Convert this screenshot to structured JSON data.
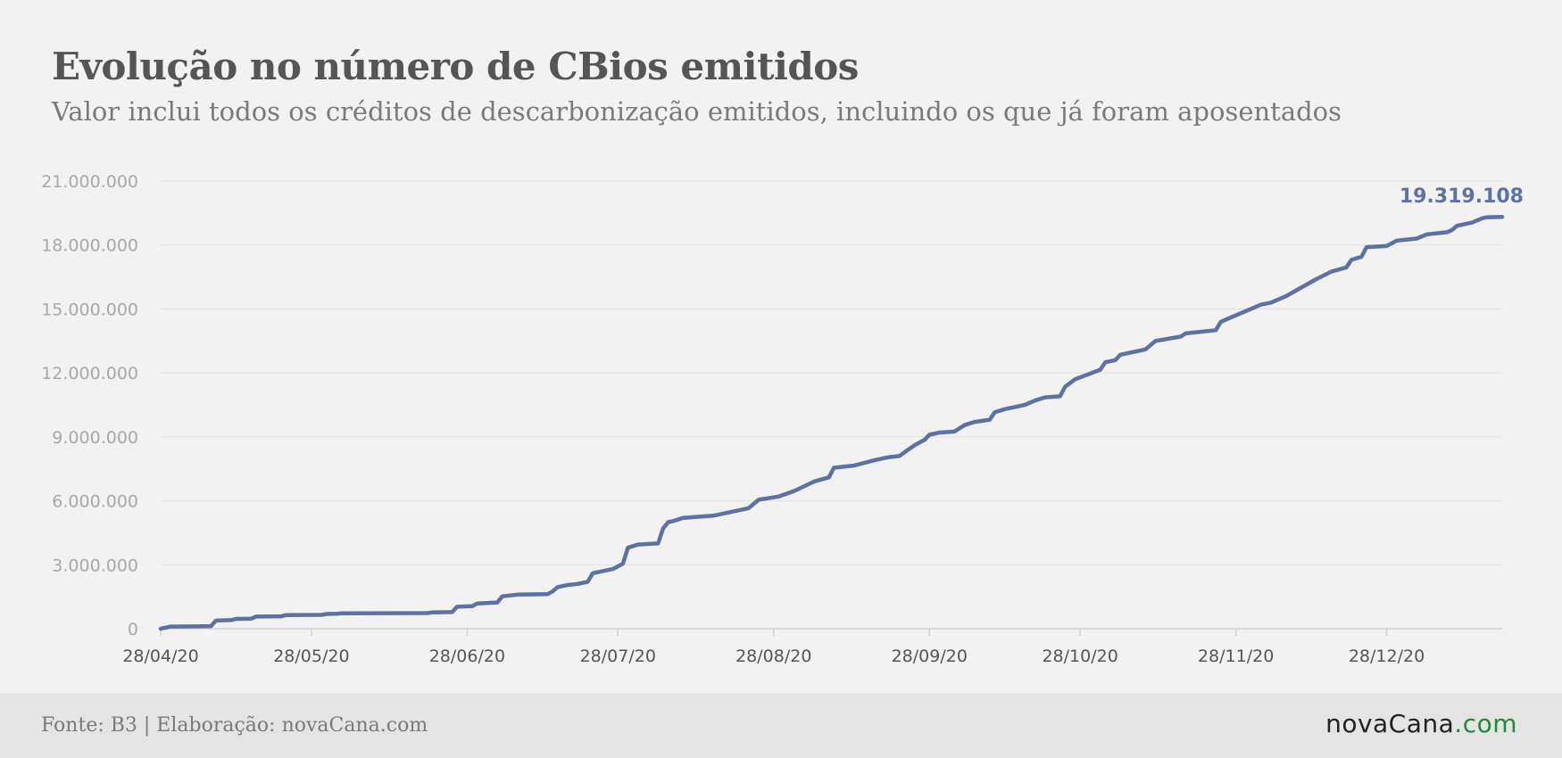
{
  "chart_data": {
    "type": "line",
    "title": "Evolução no número de CBios emitidos",
    "subtitle": "Valor inclui todos os créditos de descarbonização emitidos, incluindo os que já foram aposentados",
    "ylim": [
      0,
      21000000
    ],
    "y_ticks": [
      0,
      3000000,
      6000000,
      9000000,
      12000000,
      15000000,
      18000000,
      21000000
    ],
    "y_tick_labels": [
      "0",
      "3.000.000",
      "6.000.000",
      "9.000.000",
      "12.000.000",
      "15.000.000",
      "18.000.000",
      "21.000.000"
    ],
    "x_tick_dates": [
      "2020-04-28",
      "2020-05-28",
      "2020-06-28",
      "2020-07-28",
      "2020-08-28",
      "2020-09-28",
      "2020-10-28",
      "2020-11-28",
      "2020-12-28"
    ],
    "x_tick_labels": [
      "28/04/20",
      "28/05/20",
      "28/06/20",
      "28/07/20",
      "28/08/20",
      "28/09/20",
      "28/10/20",
      "28/11/20",
      "28/12/20"
    ],
    "xlim": [
      "2020-04-28",
      "2021-01-20"
    ],
    "grid": true,
    "series": [
      {
        "color": "#5e71a3",
        "points": [
          [
            "2020-04-28",
            0
          ],
          [
            "2020-04-30",
            100000
          ],
          [
            "2020-05-05",
            110000
          ],
          [
            "2020-05-08",
            120000
          ],
          [
            "2020-05-09",
            380000
          ],
          [
            "2020-05-12",
            400000
          ],
          [
            "2020-05-13",
            460000
          ],
          [
            "2020-05-16",
            470000
          ],
          [
            "2020-05-17",
            570000
          ],
          [
            "2020-05-22",
            580000
          ],
          [
            "2020-05-23",
            640000
          ],
          [
            "2020-05-30",
            650000
          ],
          [
            "2020-05-31",
            690000
          ],
          [
            "2020-06-02",
            700000
          ],
          [
            "2020-06-03",
            720000
          ],
          [
            "2020-06-20",
            730000
          ],
          [
            "2020-06-21",
            760000
          ],
          [
            "2020-06-25",
            780000
          ],
          [
            "2020-06-26",
            1030000
          ],
          [
            "2020-06-29",
            1060000
          ],
          [
            "2020-06-30",
            1180000
          ],
          [
            "2020-07-04",
            1230000
          ],
          [
            "2020-07-05",
            1520000
          ],
          [
            "2020-07-08",
            1600000
          ],
          [
            "2020-07-14",
            1620000
          ],
          [
            "2020-07-15",
            1750000
          ],
          [
            "2020-07-16",
            1950000
          ],
          [
            "2020-07-18",
            2050000
          ],
          [
            "2020-07-20",
            2100000
          ],
          [
            "2020-07-22",
            2200000
          ],
          [
            "2020-07-23",
            2600000
          ],
          [
            "2020-07-27",
            2800000
          ],
          [
            "2020-07-29",
            3050000
          ],
          [
            "2020-07-30",
            3800000
          ],
          [
            "2020-08-01",
            3950000
          ],
          [
            "2020-08-05",
            4000000
          ],
          [
            "2020-08-06",
            4700000
          ],
          [
            "2020-08-07",
            5000000
          ],
          [
            "2020-08-08",
            5050000
          ],
          [
            "2020-08-10",
            5200000
          ],
          [
            "2020-08-16",
            5300000
          ],
          [
            "2020-08-23",
            5650000
          ],
          [
            "2020-08-25",
            6050000
          ],
          [
            "2020-08-29",
            6200000
          ],
          [
            "2020-09-01",
            6450000
          ],
          [
            "2020-09-05",
            6900000
          ],
          [
            "2020-09-08",
            7100000
          ],
          [
            "2020-09-09",
            7550000
          ],
          [
            "2020-09-13",
            7650000
          ],
          [
            "2020-09-17",
            7900000
          ],
          [
            "2020-09-20",
            8050000
          ],
          [
            "2020-09-22",
            8100000
          ],
          [
            "2020-09-25",
            8600000
          ],
          [
            "2020-09-27",
            8850000
          ],
          [
            "2020-09-28",
            9100000
          ],
          [
            "2020-09-30",
            9200000
          ],
          [
            "2020-10-03",
            9250000
          ],
          [
            "2020-10-05",
            9550000
          ],
          [
            "2020-10-07",
            9700000
          ],
          [
            "2020-10-10",
            9800000
          ],
          [
            "2020-10-11",
            10150000
          ],
          [
            "2020-10-13",
            10300000
          ],
          [
            "2020-10-17",
            10500000
          ],
          [
            "2020-10-19",
            10700000
          ],
          [
            "2020-10-21",
            10850000
          ],
          [
            "2020-10-24",
            10900000
          ],
          [
            "2020-10-25",
            11350000
          ],
          [
            "2020-10-27",
            11700000
          ],
          [
            "2020-11-01",
            12150000
          ],
          [
            "2020-11-02",
            12500000
          ],
          [
            "2020-11-04",
            12600000
          ],
          [
            "2020-11-05",
            12850000
          ],
          [
            "2020-11-10",
            13100000
          ],
          [
            "2020-11-12",
            13500000
          ],
          [
            "2020-11-17",
            13700000
          ],
          [
            "2020-11-18",
            13850000
          ],
          [
            "2020-11-24",
            14000000
          ],
          [
            "2020-11-25",
            14400000
          ],
          [
            "2020-11-28",
            14700000
          ],
          [
            "2020-12-01",
            15000000
          ],
          [
            "2020-12-03",
            15200000
          ],
          [
            "2020-12-05",
            15300000
          ],
          [
            "2020-12-08",
            15600000
          ],
          [
            "2020-12-11",
            16000000
          ],
          [
            "2020-12-14",
            16400000
          ],
          [
            "2020-12-17",
            16750000
          ],
          [
            "2020-12-20",
            16950000
          ],
          [
            "2020-12-21",
            17300000
          ],
          [
            "2020-12-23",
            17450000
          ],
          [
            "2020-12-24",
            17900000
          ],
          [
            "2020-12-28",
            17950000
          ],
          [
            "2020-12-30",
            18200000
          ],
          [
            "2021-01-03",
            18300000
          ],
          [
            "2021-01-05",
            18500000
          ],
          [
            "2021-01-09",
            18600000
          ],
          [
            "2021-01-10",
            18700000
          ],
          [
            "2021-01-11",
            18900000
          ],
          [
            "2021-01-14",
            19050000
          ],
          [
            "2021-01-16",
            19250000
          ],
          [
            "2021-01-17",
            19300000
          ],
          [
            "2021-01-20",
            19319108
          ]
        ]
      }
    ],
    "annotations": [
      {
        "text": "19.319.108",
        "date": "2021-01-20",
        "value": 19319108
      }
    ]
  },
  "footer": {
    "source": "Fonte: B3 | Elaboração: novaCana.com",
    "logo_brand": "novaCana",
    "logo_tld": ".com"
  }
}
